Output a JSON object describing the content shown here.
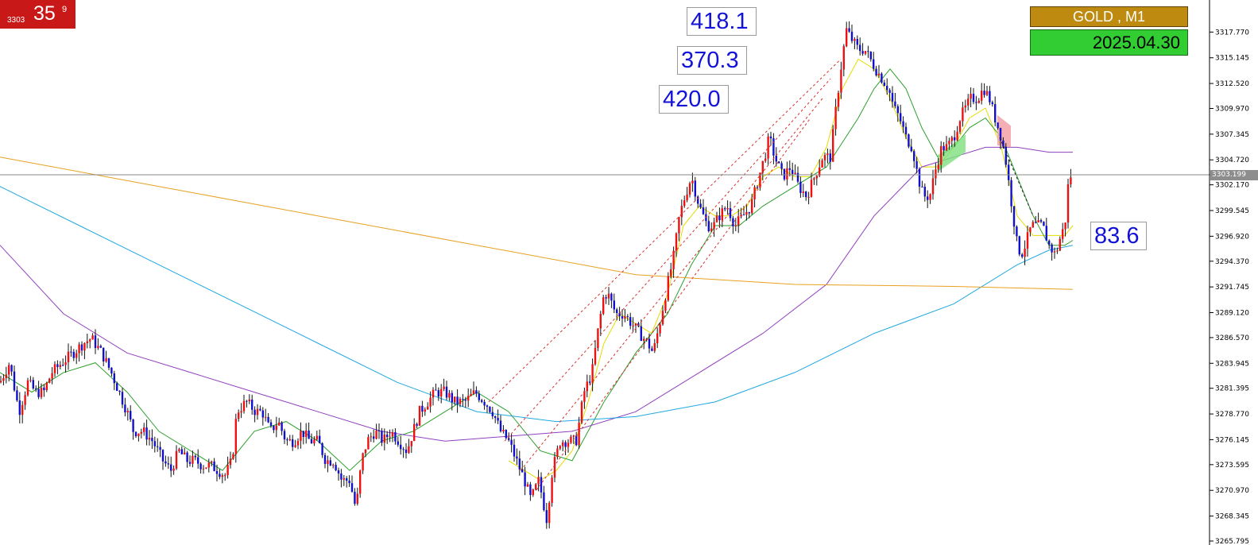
{
  "badge": {
    "small": "3303",
    "big": "35",
    "sup": "9"
  },
  "symbol": "GOLD , M1",
  "date": "2025.04.30",
  "labels": [
    "418.1",
    "370.3",
    "420.0",
    "83.6"
  ],
  "current_price": "3303.199",
  "colors": {
    "bull": "#ee1111",
    "bear": "#1111cc",
    "ma_green": "#2ea02e",
    "ma_purple": "#9040c0",
    "ma_cyan": "#20a8e0",
    "ma_orange": "#e8a020",
    "ma_yellow": "#e6dc00"
  },
  "chart_data": {
    "type": "candlestick",
    "symbol": "GOLD",
    "timeframe": "M1",
    "y_range": [
      3265.795,
      3320.395
    ],
    "y_ticks": [
      "3317.770",
      "3315.145",
      "3312.520",
      "3309.970",
      "3307.345",
      "3304.720",
      "3302.170",
      "3299.545",
      "3296.920",
      "3294.370",
      "3291.745",
      "3289.120",
      "3286.570",
      "3283.945",
      "3281.395",
      "3278.770",
      "3276.145",
      "3273.595",
      "3270.970",
      "3268.345",
      "3265.795"
    ],
    "current_price": 3303.199,
    "close_path": [
      [
        0,
        3282
      ],
      [
        12,
        3284
      ],
      [
        24,
        3279
      ],
      [
        35,
        3282
      ],
      [
        45,
        3281
      ],
      [
        55,
        3281
      ],
      [
        65,
        3283
      ],
      [
        78,
        3284
      ],
      [
        92,
        3285
      ],
      [
        105,
        3286
      ],
      [
        115,
        3286.5
      ],
      [
        128,
        3285
      ],
      [
        140,
        3283
      ],
      [
        150,
        3281
      ],
      [
        160,
        3279
      ],
      [
        168,
        3277
      ],
      [
        180,
        3277
      ],
      [
        192,
        3276
      ],
      [
        205,
        3274
      ],
      [
        215,
        3273
      ],
      [
        225,
        3275
      ],
      [
        235,
        3274
      ],
      [
        245,
        3274
      ],
      [
        255,
        3273.5
      ],
      [
        265,
        3273.5
      ],
      [
        275,
        3273
      ],
      [
        283,
        3272.5
      ],
      [
        292,
        3274
      ],
      [
        298,
        3279
      ],
      [
        310,
        3280
      ],
      [
        322,
        3279
      ],
      [
        330,
        3279
      ],
      [
        340,
        3277
      ],
      [
        350,
        3278
      ],
      [
        360,
        3276
      ],
      [
        370,
        3276
      ],
      [
        380,
        3277
      ],
      [
        390,
        3276
      ],
      [
        400,
        3276
      ],
      [
        410,
        3274
      ],
      [
        420,
        3274
      ],
      [
        430,
        3272
      ],
      [
        440,
        3272
      ],
      [
        448,
        3269
      ],
      [
        455,
        3274
      ],
      [
        462,
        3276
      ],
      [
        472,
        3277
      ],
      [
        482,
        3276
      ],
      [
        492,
        3277
      ],
      [
        502,
        3276
      ],
      [
        512,
        3275
      ],
      [
        520,
        3277
      ],
      [
        528,
        3279
      ],
      [
        538,
        3280
      ],
      [
        548,
        3281
      ],
      [
        560,
        3281
      ],
      [
        572,
        3280
      ],
      [
        585,
        3280
      ],
      [
        598,
        3281
      ],
      [
        610,
        3280
      ],
      [
        620,
        3279
      ],
      [
        630,
        3277
      ],
      [
        640,
        3276
      ],
      [
        650,
        3274
      ],
      [
        660,
        3272
      ],
      [
        668,
        3270
      ],
      [
        678,
        3272
      ],
      [
        688,
        3268
      ],
      [
        695,
        3273
      ],
      [
        705,
        3276
      ],
      [
        715,
        3276
      ],
      [
        725,
        3276
      ],
      [
        735,
        3281
      ],
      [
        745,
        3283
      ],
      [
        752,
        3287
      ],
      [
        760,
        3291
      ],
      [
        765,
        3291
      ],
      [
        775,
        3289
      ],
      [
        785,
        3289
      ],
      [
        795,
        3288
      ],
      [
        805,
        3287
      ],
      [
        815,
        3286
      ],
      [
        822,
        3285
      ],
      [
        830,
        3288
      ],
      [
        840,
        3292
      ],
      [
        848,
        3295
      ],
      [
        855,
        3299
      ],
      [
        862,
        3301
      ],
      [
        870,
        3303
      ],
      [
        880,
        3300
      ],
      [
        890,
        3298
      ],
      [
        898,
        3298
      ],
      [
        905,
        3299
      ],
      [
        915,
        3300
      ],
      [
        925,
        3298
      ],
      [
        935,
        3299
      ],
      [
        945,
        3300
      ],
      [
        955,
        3303
      ],
      [
        962,
        3305
      ],
      [
        968,
        3307
      ],
      [
        975,
        3305
      ],
      [
        985,
        3303
      ],
      [
        995,
        3304
      ],
      [
        1005,
        3302
      ],
      [
        1015,
        3301
      ],
      [
        1025,
        3303
      ],
      [
        1035,
        3305
      ],
      [
        1045,
        3305
      ],
      [
        1052,
        3310
      ],
      [
        1058,
        3314
      ],
      [
        1065,
        3318
      ],
      [
        1072,
        3317
      ],
      [
        1080,
        3316
      ],
      [
        1088,
        3316
      ],
      [
        1095,
        3315
      ],
      [
        1102,
        3314
      ],
      [
        1110,
        3313
      ],
      [
        1118,
        3312
      ],
      [
        1125,
        3310
      ],
      [
        1132,
        3309
      ],
      [
        1140,
        3307
      ],
      [
        1148,
        3306
      ],
      [
        1155,
        3303
      ],
      [
        1162,
        3301
      ],
      [
        1170,
        3301
      ],
      [
        1178,
        3304
      ],
      [
        1185,
        3306
      ],
      [
        1192,
        3306
      ],
      [
        1200,
        3307
      ],
      [
        1208,
        3309
      ],
      [
        1215,
        3310
      ],
      [
        1222,
        3311
      ],
      [
        1230,
        3311
      ],
      [
        1238,
        3312
      ],
      [
        1245,
        3311
      ],
      [
        1252,
        3309
      ],
      [
        1260,
        3307
      ],
      [
        1265,
        3305
      ],
      [
        1270,
        3302
      ],
      [
        1275,
        3299
      ],
      [
        1280,
        3296
      ],
      [
        1285,
        3295
      ],
      [
        1290,
        3296
      ],
      [
        1298,
        3298
      ],
      [
        1305,
        3298
      ],
      [
        1312,
        3298
      ],
      [
        1320,
        3296
      ],
      [
        1328,
        3295
      ],
      [
        1335,
        3297
      ],
      [
        1340,
        3298
      ],
      [
        1345,
        3303
      ],
      [
        1350,
        3303.2
      ]
    ],
    "moving_averages": {
      "yellow": [
        [
          640,
          3274
        ],
        [
          660,
          3273
        ],
        [
          680,
          3272
        ],
        [
          700,
          3273
        ],
        [
          720,
          3275
        ],
        [
          740,
          3280
        ],
        [
          760,
          3286
        ],
        [
          780,
          3289
        ],
        [
          800,
          3288
        ],
        [
          820,
          3287
        ],
        [
          840,
          3291
        ],
        [
          860,
          3298
        ],
        [
          880,
          3300
        ],
        [
          900,
          3299
        ],
        [
          920,
          3299
        ],
        [
          940,
          3300
        ],
        [
          960,
          3303
        ],
        [
          980,
          3304
        ],
        [
          1000,
          3303
        ],
        [
          1020,
          3303
        ],
        [
          1040,
          3306
        ],
        [
          1060,
          3312
        ],
        [
          1080,
          3315
        ],
        [
          1100,
          3314
        ],
        [
          1120,
          3311
        ],
        [
          1140,
          3307
        ],
        [
          1160,
          3304
        ],
        [
          1180,
          3304
        ],
        [
          1200,
          3306
        ],
        [
          1220,
          3309
        ],
        [
          1240,
          3310
        ],
        [
          1260,
          3306
        ],
        [
          1280,
          3299
        ],
        [
          1300,
          3297
        ],
        [
          1320,
          3297
        ],
        [
          1340,
          3297
        ],
        [
          1350,
          3298
        ]
      ],
      "green": [
        [
          0,
          3283
        ],
        [
          40,
          3281
        ],
        [
          80,
          3283
        ],
        [
          120,
          3284
        ],
        [
          160,
          3281
        ],
        [
          200,
          3277
        ],
        [
          240,
          3275
        ],
        [
          280,
          3273
        ],
        [
          320,
          3277
        ],
        [
          360,
          3278
        ],
        [
          400,
          3276
        ],
        [
          440,
          3273
        ],
        [
          480,
          3276
        ],
        [
          520,
          3277
        ],
        [
          560,
          3279
        ],
        [
          600,
          3281
        ],
        [
          640,
          3279
        ],
        [
          680,
          3275
        ],
        [
          720,
          3274
        ],
        [
          760,
          3280
        ],
        [
          800,
          3285
        ],
        [
          840,
          3289
        ],
        [
          870,
          3294
        ],
        [
          900,
          3298
        ],
        [
          930,
          3298
        ],
        [
          960,
          3300
        ],
        [
          1000,
          3302
        ],
        [
          1040,
          3304
        ],
        [
          1080,
          3309
        ],
        [
          1100,
          3312
        ],
        [
          1120,
          3314
        ],
        [
          1140,
          3312
        ],
        [
          1160,
          3308
        ],
        [
          1180,
          3305
        ],
        [
          1200,
          3306
        ],
        [
          1220,
          3308
        ],
        [
          1240,
          3309
        ],
        [
          1260,
          3307
        ],
        [
          1280,
          3303
        ],
        [
          1300,
          3299
        ],
        [
          1320,
          3296
        ],
        [
          1340,
          3296
        ],
        [
          1350,
          3296.5
        ]
      ],
      "purple": [
        [
          0,
          3296
        ],
        [
          80,
          3289
        ],
        [
          160,
          3285
        ],
        [
          240,
          3283
        ],
        [
          320,
          3281
        ],
        [
          400,
          3279
        ],
        [
          480,
          3277
        ],
        [
          560,
          3276
        ],
        [
          640,
          3276.5
        ],
        [
          720,
          3277
        ],
        [
          800,
          3279
        ],
        [
          880,
          3283
        ],
        [
          960,
          3287
        ],
        [
          1040,
          3292
        ],
        [
          1100,
          3299
        ],
        [
          1160,
          3304
        ],
        [
          1200,
          3305
        ],
        [
          1240,
          3306
        ],
        [
          1280,
          3306
        ],
        [
          1320,
          3305.5
        ],
        [
          1350,
          3305.5
        ]
      ],
      "cyan": [
        [
          0,
          3302
        ],
        [
          100,
          3298
        ],
        [
          200,
          3294
        ],
        [
          300,
          3290
        ],
        [
          400,
          3286
        ],
        [
          500,
          3282
        ],
        [
          600,
          3279
        ],
        [
          700,
          3278
        ],
        [
          800,
          3278.5
        ],
        [
          900,
          3280
        ],
        [
          1000,
          3283
        ],
        [
          1100,
          3287
        ],
        [
          1200,
          3290
        ],
        [
          1280,
          3294
        ],
        [
          1320,
          3295.5
        ],
        [
          1350,
          3296
        ]
      ],
      "orange": [
        [
          0,
          3305
        ],
        [
          200,
          3302
        ],
        [
          400,
          3299
        ],
        [
          600,
          3296
        ],
        [
          800,
          3293
        ],
        [
          1000,
          3292
        ],
        [
          1200,
          3291.8
        ],
        [
          1350,
          3291.5
        ]
      ]
    }
  }
}
